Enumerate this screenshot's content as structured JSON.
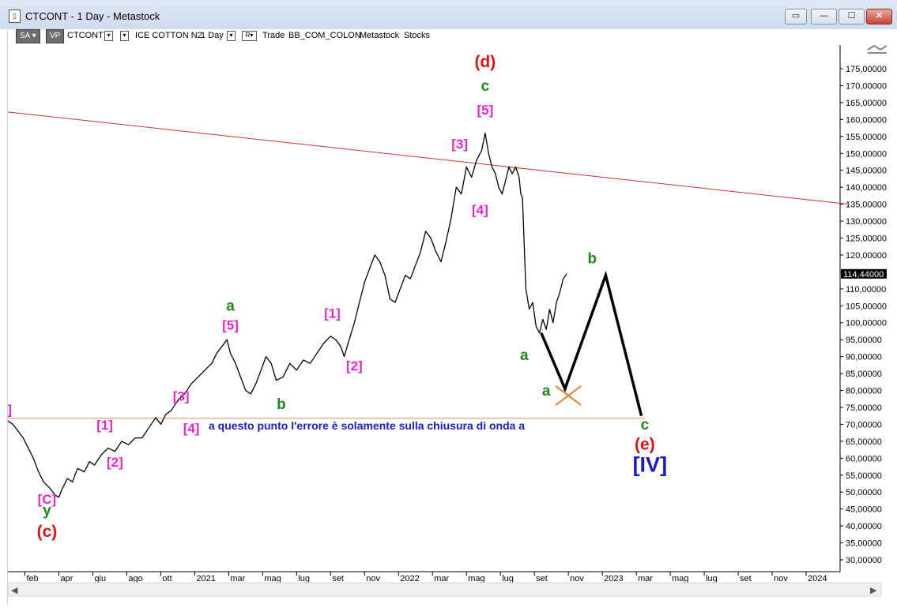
{
  "window": {
    "title": "CTCONT - 1 Day - Metastock",
    "app_icon": "chart-app-icon",
    "buttons": [
      "restore-alt",
      "minimize",
      "maximize",
      "close"
    ]
  },
  "toolbar": {
    "sa": "SA",
    "vp": "VP",
    "symbol": "CTCONT",
    "exchange": "ICE COTTON N2",
    "period": "1 Day",
    "r_label": "R",
    "trade": "Trade",
    "account": "BB_COM_COLON",
    "provider": "Metastock",
    "asset_class": "Stocks"
  },
  "colors": {
    "price": "#000000",
    "pink": "#ee22cc",
    "green": "#1a8a1a",
    "red": "#dd1111",
    "blue": "#1a1acc",
    "channel": "#cc3333",
    "support": "#e2905a",
    "orange_x": "#e08030"
  },
  "chart_data": {
    "type": "line",
    "symbol": "CTCONT",
    "y_range": [
      26.5,
      182
    ],
    "y_ticks": [
      "175,00000",
      "170,00000",
      "165,00000",
      "160,00000",
      "155,00000",
      "150,00000",
      "145,00000",
      "140,00000",
      "135,00000",
      "130,00000",
      "125,00000",
      "120,00000",
      "115,00000",
      "110,00000",
      "105,00000",
      "100,00000",
      "95,00000",
      "90,00000",
      "85,00000",
      "80,00000",
      "75,00000",
      "70,00000",
      "65,00000",
      "60,00000",
      "55,00000",
      "50,00000",
      "45,00000",
      "40,00000",
      "35,00000",
      "30,00000"
    ],
    "y_tick_values": [
      175,
      170,
      165,
      160,
      155,
      150,
      145,
      140,
      135,
      130,
      125,
      120,
      115,
      110,
      105,
      100,
      95,
      90,
      85,
      80,
      75,
      70,
      65,
      60,
      55,
      50,
      45,
      40,
      35,
      30
    ],
    "current_price_label": "114,44000",
    "current_price": 114.44,
    "x_ticks": [
      "feb",
      "apr",
      "giu",
      "ago",
      "ott",
      "2021",
      "mar",
      "mag",
      "lug",
      "set",
      "nov",
      "2022",
      "mar",
      "mag",
      "lug",
      "set",
      "nov",
      "2023",
      "mar",
      "mag",
      "lug",
      "set",
      "nov",
      "2024"
    ],
    "x_tick_index": [
      1,
      3,
      5,
      7,
      9,
      11,
      13,
      15,
      17,
      19,
      21,
      23,
      25,
      27,
      29,
      31,
      33,
      35,
      37,
      39,
      41,
      43,
      45,
      47
    ],
    "x_index_range": [
      0,
      49
    ],
    "price_series": [
      [
        0,
        71
      ],
      [
        0.3,
        70
      ],
      [
        0.6,
        68
      ],
      [
        0.9,
        66
      ],
      [
        1.2,
        63
      ],
      [
        1.5,
        60
      ],
      [
        1.8,
        56
      ],
      [
        2.1,
        53
      ],
      [
        2.5,
        51
      ],
      [
        2.8,
        49
      ],
      [
        3.0,
        48.5
      ],
      [
        3.2,
        51
      ],
      [
        3.5,
        54
      ],
      [
        3.8,
        53
      ],
      [
        4.1,
        57
      ],
      [
        4.5,
        56
      ],
      [
        4.8,
        59
      ],
      [
        5.1,
        58
      ],
      [
        5.5,
        61
      ],
      [
        5.9,
        63
      ],
      [
        6.3,
        62
      ],
      [
        6.7,
        65
      ],
      [
        7.1,
        64
      ],
      [
        7.5,
        66
      ],
      [
        7.9,
        66
      ],
      [
        8.3,
        69
      ],
      [
        8.7,
        72
      ],
      [
        9.0,
        70
      ],
      [
        9.3,
        73
      ],
      [
        9.6,
        74
      ],
      [
        10.0,
        77
      ],
      [
        10.4,
        79
      ],
      [
        10.8,
        82
      ],
      [
        11.2,
        84
      ],
      [
        11.6,
        86
      ],
      [
        12.0,
        88
      ],
      [
        12.3,
        91
      ],
      [
        12.6,
        93
      ],
      [
        12.9,
        95
      ],
      [
        13.1,
        91
      ],
      [
        13.4,
        88
      ],
      [
        13.7,
        84
      ],
      [
        14.0,
        80
      ],
      [
        14.3,
        79
      ],
      [
        14.6,
        82
      ],
      [
        14.9,
        86
      ],
      [
        15.2,
        90
      ],
      [
        15.5,
        88
      ],
      [
        15.8,
        83
      ],
      [
        16.2,
        84
      ],
      [
        16.6,
        88
      ],
      [
        17.0,
        86
      ],
      [
        17.4,
        89
      ],
      [
        17.8,
        88
      ],
      [
        18.2,
        91
      ],
      [
        18.6,
        94
      ],
      [
        19.0,
        96
      ],
      [
        19.3,
        95
      ],
      [
        19.6,
        93
      ],
      [
        19.8,
        90
      ],
      [
        20.1,
        95
      ],
      [
        20.4,
        100
      ],
      [
        20.7,
        106
      ],
      [
        21.0,
        112
      ],
      [
        21.3,
        116
      ],
      [
        21.6,
        120
      ],
      [
        21.9,
        118
      ],
      [
        22.2,
        114
      ],
      [
        22.5,
        107
      ],
      [
        22.8,
        106
      ],
      [
        23.1,
        110
      ],
      [
        23.4,
        114
      ],
      [
        23.7,
        113
      ],
      [
        24.0,
        117
      ],
      [
        24.3,
        121
      ],
      [
        24.6,
        127
      ],
      [
        24.9,
        125
      ],
      [
        25.2,
        121
      ],
      [
        25.5,
        118
      ],
      [
        25.8,
        124
      ],
      [
        26.1,
        131
      ],
      [
        26.4,
        140
      ],
      [
        26.7,
        138
      ],
      [
        27.0,
        146
      ],
      [
        27.3,
        143
      ],
      [
        27.6,
        148
      ],
      [
        27.9,
        151
      ],
      [
        28.1,
        156
      ],
      [
        28.3,
        150
      ],
      [
        28.5,
        146
      ],
      [
        28.7,
        144
      ],
      [
        28.9,
        140
      ],
      [
        29.1,
        138
      ],
      [
        29.3,
        142
      ],
      [
        29.5,
        146
      ],
      [
        29.7,
        144
      ],
      [
        29.9,
        146
      ],
      [
        30.1,
        143
      ],
      [
        30.2,
        138
      ],
      [
        30.3,
        137
      ],
      [
        30.4,
        123
      ],
      [
        30.5,
        110
      ],
      [
        30.7,
        104
      ],
      [
        30.9,
        106
      ],
      [
        31.1,
        99
      ],
      [
        31.3,
        97
      ],
      [
        31.5,
        101
      ],
      [
        31.7,
        98
      ],
      [
        31.9,
        104
      ],
      [
        32.1,
        100
      ],
      [
        32.3,
        106
      ],
      [
        32.5,
        109
      ],
      [
        32.7,
        113
      ],
      [
        32.9,
        114.44
      ]
    ],
    "channel_line": [
      [
        -0.5,
        162.5
      ],
      [
        49.5,
        135
      ]
    ],
    "support_line": [
      [
        -0.5,
        71.8
      ],
      [
        37.5,
        71.8
      ]
    ],
    "projection_path": [
      [
        31.4,
        97
      ],
      [
        32.8,
        80.5
      ],
      [
        35.2,
        114
      ],
      [
        37.3,
        72.5
      ]
    ],
    "x_mark_at": [
      33.0,
      78.5
    ],
    "note_text": "a questo punto l'errore è solamente sulla chiusura di onda a",
    "wave_labels": [
      {
        "text": "(d)",
        "color": "red",
        "x": 28.1,
        "y": 175.5,
        "size": 21
      },
      {
        "text": "c",
        "color": "green",
        "x": 28.1,
        "y": 168.5,
        "size": 19
      },
      {
        "text": "[5]",
        "color": "pink",
        "x": 28.1,
        "y": 161.5,
        "size": 17
      },
      {
        "text": "[3]",
        "color": "pink",
        "x": 26.6,
        "y": 151.5,
        "size": 17
      },
      {
        "text": "[4]",
        "color": "pink",
        "x": 27.8,
        "y": 132,
        "size": 17
      },
      {
        "text": "a",
        "color": "green",
        "x": 13.1,
        "y": 103.5,
        "size": 19
      },
      {
        "text": "[5]",
        "color": "pink",
        "x": 13.1,
        "y": 98,
        "size": 17
      },
      {
        "text": "[1]",
        "color": "pink",
        "x": 19.1,
        "y": 101.5,
        "size": 17
      },
      {
        "text": "[2]",
        "color": "pink",
        "x": 20.4,
        "y": 86,
        "size": 17
      },
      {
        "text": "b",
        "color": "green",
        "x": 16.1,
        "y": 74.5,
        "size": 19
      },
      {
        "text": "[3]",
        "color": "pink",
        "x": 10.2,
        "y": 77,
        "size": 17
      },
      {
        "text": "[4]",
        "color": "pink",
        "x": 10.8,
        "y": 67.5,
        "size": 17
      },
      {
        "text": "[1]",
        "color": "pink",
        "x": 5.7,
        "y": 68.5,
        "size": 17
      },
      {
        "text": "[2]",
        "color": "pink",
        "x": 6.3,
        "y": 57.5,
        "size": 17
      },
      {
        "text": "]",
        "color": "pink",
        "x": 0.1,
        "y": 73,
        "size": 17
      },
      {
        "text": "[C]",
        "color": "pink",
        "x": 2.3,
        "y": 46.5,
        "size": 17
      },
      {
        "text": "y",
        "color": "green",
        "x": 2.3,
        "y": 43.2,
        "size": 19
      },
      {
        "text": "(c)",
        "color": "red",
        "x": 2.3,
        "y": 36.8,
        "size": 21
      },
      {
        "text": "a",
        "color": "green",
        "x": 30.4,
        "y": 89,
        "size": 19
      },
      {
        "text": "b",
        "color": "green",
        "x": 34.4,
        "y": 117.5,
        "size": 19
      },
      {
        "text": "a",
        "color": "green",
        "x": 31.7,
        "y": 78.5,
        "size": 19
      },
      {
        "text": "c",
        "color": "green",
        "x": 37.5,
        "y": 68.5,
        "size": 19
      },
      {
        "text": "(e)",
        "color": "red",
        "x": 37.5,
        "y": 62.5,
        "size": 21
      },
      {
        "text": "[IV]",
        "color": "blue",
        "x": 37.8,
        "y": 56,
        "size": 27
      }
    ]
  }
}
